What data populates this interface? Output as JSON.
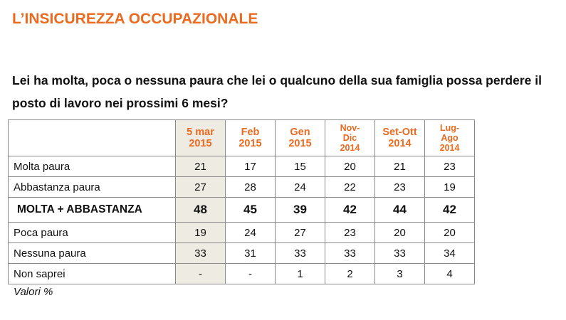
{
  "title": "L’INSICUREZZA OCCUPAZIONALE",
  "question": "Lei ha molta, poca o nessuna paura che lei o qualcuno della sua famiglia possa perdere il posto di lavoro nei prossimi 6 mesi?",
  "note": "Valori %",
  "colors": {
    "accent": "#ea6a1f",
    "highlight_column": "#eeebe2",
    "border": "#8a8a8a"
  },
  "chart_data": {
    "type": "table",
    "columns": [
      {
        "lines": [
          "5 mar",
          "2015"
        ]
      },
      {
        "lines": [
          "Feb",
          "2015"
        ]
      },
      {
        "lines": [
          "Gen",
          "2015"
        ]
      },
      {
        "lines": [
          "Nov-",
          "Dic",
          "2014"
        ]
      },
      {
        "lines": [
          "Set-Ott",
          "2014"
        ]
      },
      {
        "lines": [
          "Lug-",
          "Ago",
          "2014"
        ]
      }
    ],
    "rows": [
      {
        "label": "Molta paura",
        "values": [
          "21",
          "17",
          "15",
          "20",
          "21",
          "23"
        ]
      },
      {
        "label": "Abbastanza paura",
        "values": [
          "27",
          "28",
          "24",
          "22",
          "23",
          "19"
        ]
      },
      {
        "label": "MOLTA + ABBASTANZA",
        "values": [
          "48",
          "45",
          "39",
          "42",
          "44",
          "42"
        ],
        "bold": true
      },
      {
        "label": "Poca paura",
        "values": [
          "19",
          "24",
          "27",
          "23",
          "20",
          "20"
        ]
      },
      {
        "label": "Nessuna paura",
        "values": [
          "33",
          "31",
          "33",
          "33",
          "33",
          "34"
        ]
      },
      {
        "label": "Non saprei",
        "values": [
          "-",
          "-",
          "1",
          "2",
          "3",
          "4"
        ]
      }
    ],
    "highlighted_column": 0
  }
}
